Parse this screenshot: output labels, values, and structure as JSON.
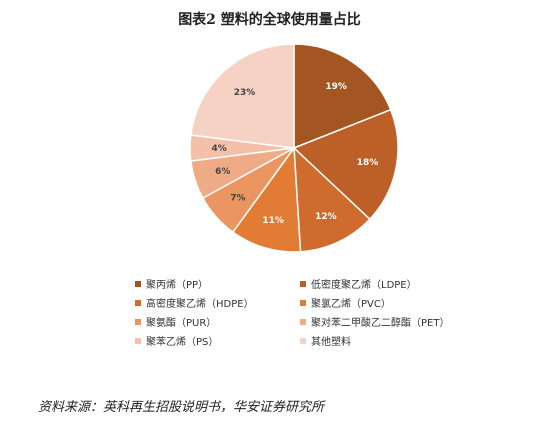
{
  "chart_data": {
    "type": "pie",
    "title": "图表2 塑料的全球使用量占比",
    "slices": [
      {
        "name": "聚丙烯（PP）",
        "value": 19,
        "label": "19%",
        "color": "#a35621"
      },
      {
        "name": "低密度聚乙烯（LDPE）",
        "value": 18,
        "label": "18%",
        "color": "#bc6027"
      },
      {
        "name": "高密度聚乙烯（HDPE）",
        "value": 12,
        "label": "12%",
        "color": "#cf6b2c"
      },
      {
        "name": "聚氯乙烯（PVC）",
        "value": 11,
        "label": "11%",
        "color": "#e27b33"
      },
      {
        "name": "聚氨酯（PUR）",
        "value": 7,
        "label": "7%",
        "color": "#eb9561"
      },
      {
        "name": "聚对苯二甲酸乙二醇酯（PET）",
        "value": 6,
        "label": "6%",
        "color": "#efab86"
      },
      {
        "name": "聚苯乙烯（PS）",
        "value": 4,
        "label": "4%",
        "color": "#f4c0a8"
      },
      {
        "name": "其他塑料",
        "value": 23,
        "label": "23%",
        "color": "#f6d2c4"
      }
    ],
    "legend": {
      "placement": "bottom",
      "columns": 2
    }
  },
  "source": "资料来源：英科再生招股说明书，华安证券研究所"
}
